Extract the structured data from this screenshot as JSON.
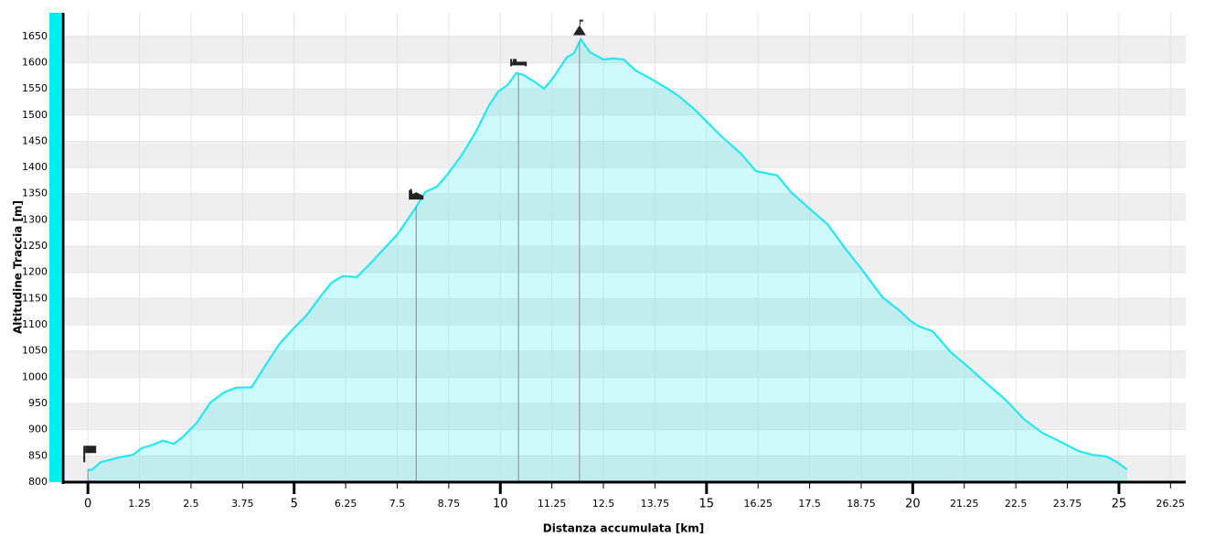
{
  "chart_data": {
    "type": "area",
    "x_label": "Distanza accumulata [km]",
    "y_label": "Altitudine Traccia [m]",
    "x": [
      0,
      0.09,
      0.31,
      0.75,
      1.09,
      1.31,
      1.53,
      1.82,
      2.08,
      2.3,
      2.64,
      2.97,
      3.3,
      3.59,
      3.97,
      4.3,
      4.64,
      4.96,
      5.3,
      5.63,
      5.9,
      6.18,
      6.52,
      6.85,
      7.18,
      7.51,
      7.78,
      7.96,
      8.18,
      8.47,
      8.73,
      9.06,
      9.4,
      9.73,
      9.95,
      10.17,
      10.39,
      10.55,
      10.84,
      11.06,
      11.28,
      11.61,
      11.79,
      11.95,
      12.17,
      12.5,
      12.73,
      12.99,
      13.28,
      13.61,
      14.06,
      14.38,
      14.72,
      15.05,
      15.38,
      15.83,
      16.2,
      16.71,
      17.05,
      17.49,
      17.93,
      18.37,
      18.82,
      19.26,
      19.7,
      19.92,
      20.15,
      20.48,
      20.92,
      21.37,
      21.81,
      22.25,
      22.7,
      23.14,
      23.58,
      24.03,
      24.36,
      24.69,
      24.96,
      25.2
    ],
    "values": [
      824,
      823,
      838,
      847,
      852,
      865,
      870,
      879,
      873,
      886,
      913,
      952,
      971,
      980,
      981,
      1022,
      1063,
      1091,
      1118,
      1153,
      1180,
      1193,
      1191,
      1217,
      1245,
      1273,
      1304,
      1325,
      1353,
      1364,
      1388,
      1423,
      1467,
      1519,
      1545,
      1557,
      1580,
      1577,
      1563,
      1550,
      1571,
      1610,
      1618,
      1645,
      1620,
      1606,
      1608,
      1606,
      1585,
      1571,
      1550,
      1533,
      1510,
      1484,
      1458,
      1427,
      1393,
      1385,
      1353,
      1322,
      1292,
      1245,
      1200,
      1153,
      1126,
      1109,
      1097,
      1088,
      1048,
      1018,
      987,
      957,
      920,
      894,
      877,
      859,
      852,
      849,
      838,
      824
    ],
    "color": "#22e8f2",
    "waypoints": [
      0,
      7.96,
      10.44,
      11.92
    ],
    "xlim": [
      -0.58,
      26.62
    ],
    "ylim": [
      800,
      1695
    ],
    "xticks": [
      0,
      1.25,
      2.5,
      3.75,
      5,
      6.25,
      7.5,
      8.75,
      10,
      11.25,
      12.5,
      13.75,
      15,
      16.25,
      17.5,
      18.75,
      20,
      21.25,
      22.5,
      23.75,
      25,
      26.25
    ],
    "yticks": [
      800,
      850,
      900,
      950,
      1000,
      1050,
      1100,
      1150,
      1200,
      1250,
      1300,
      1350,
      1400,
      1450,
      1500,
      1550,
      1600,
      1650
    ],
    "grid": true
  }
}
